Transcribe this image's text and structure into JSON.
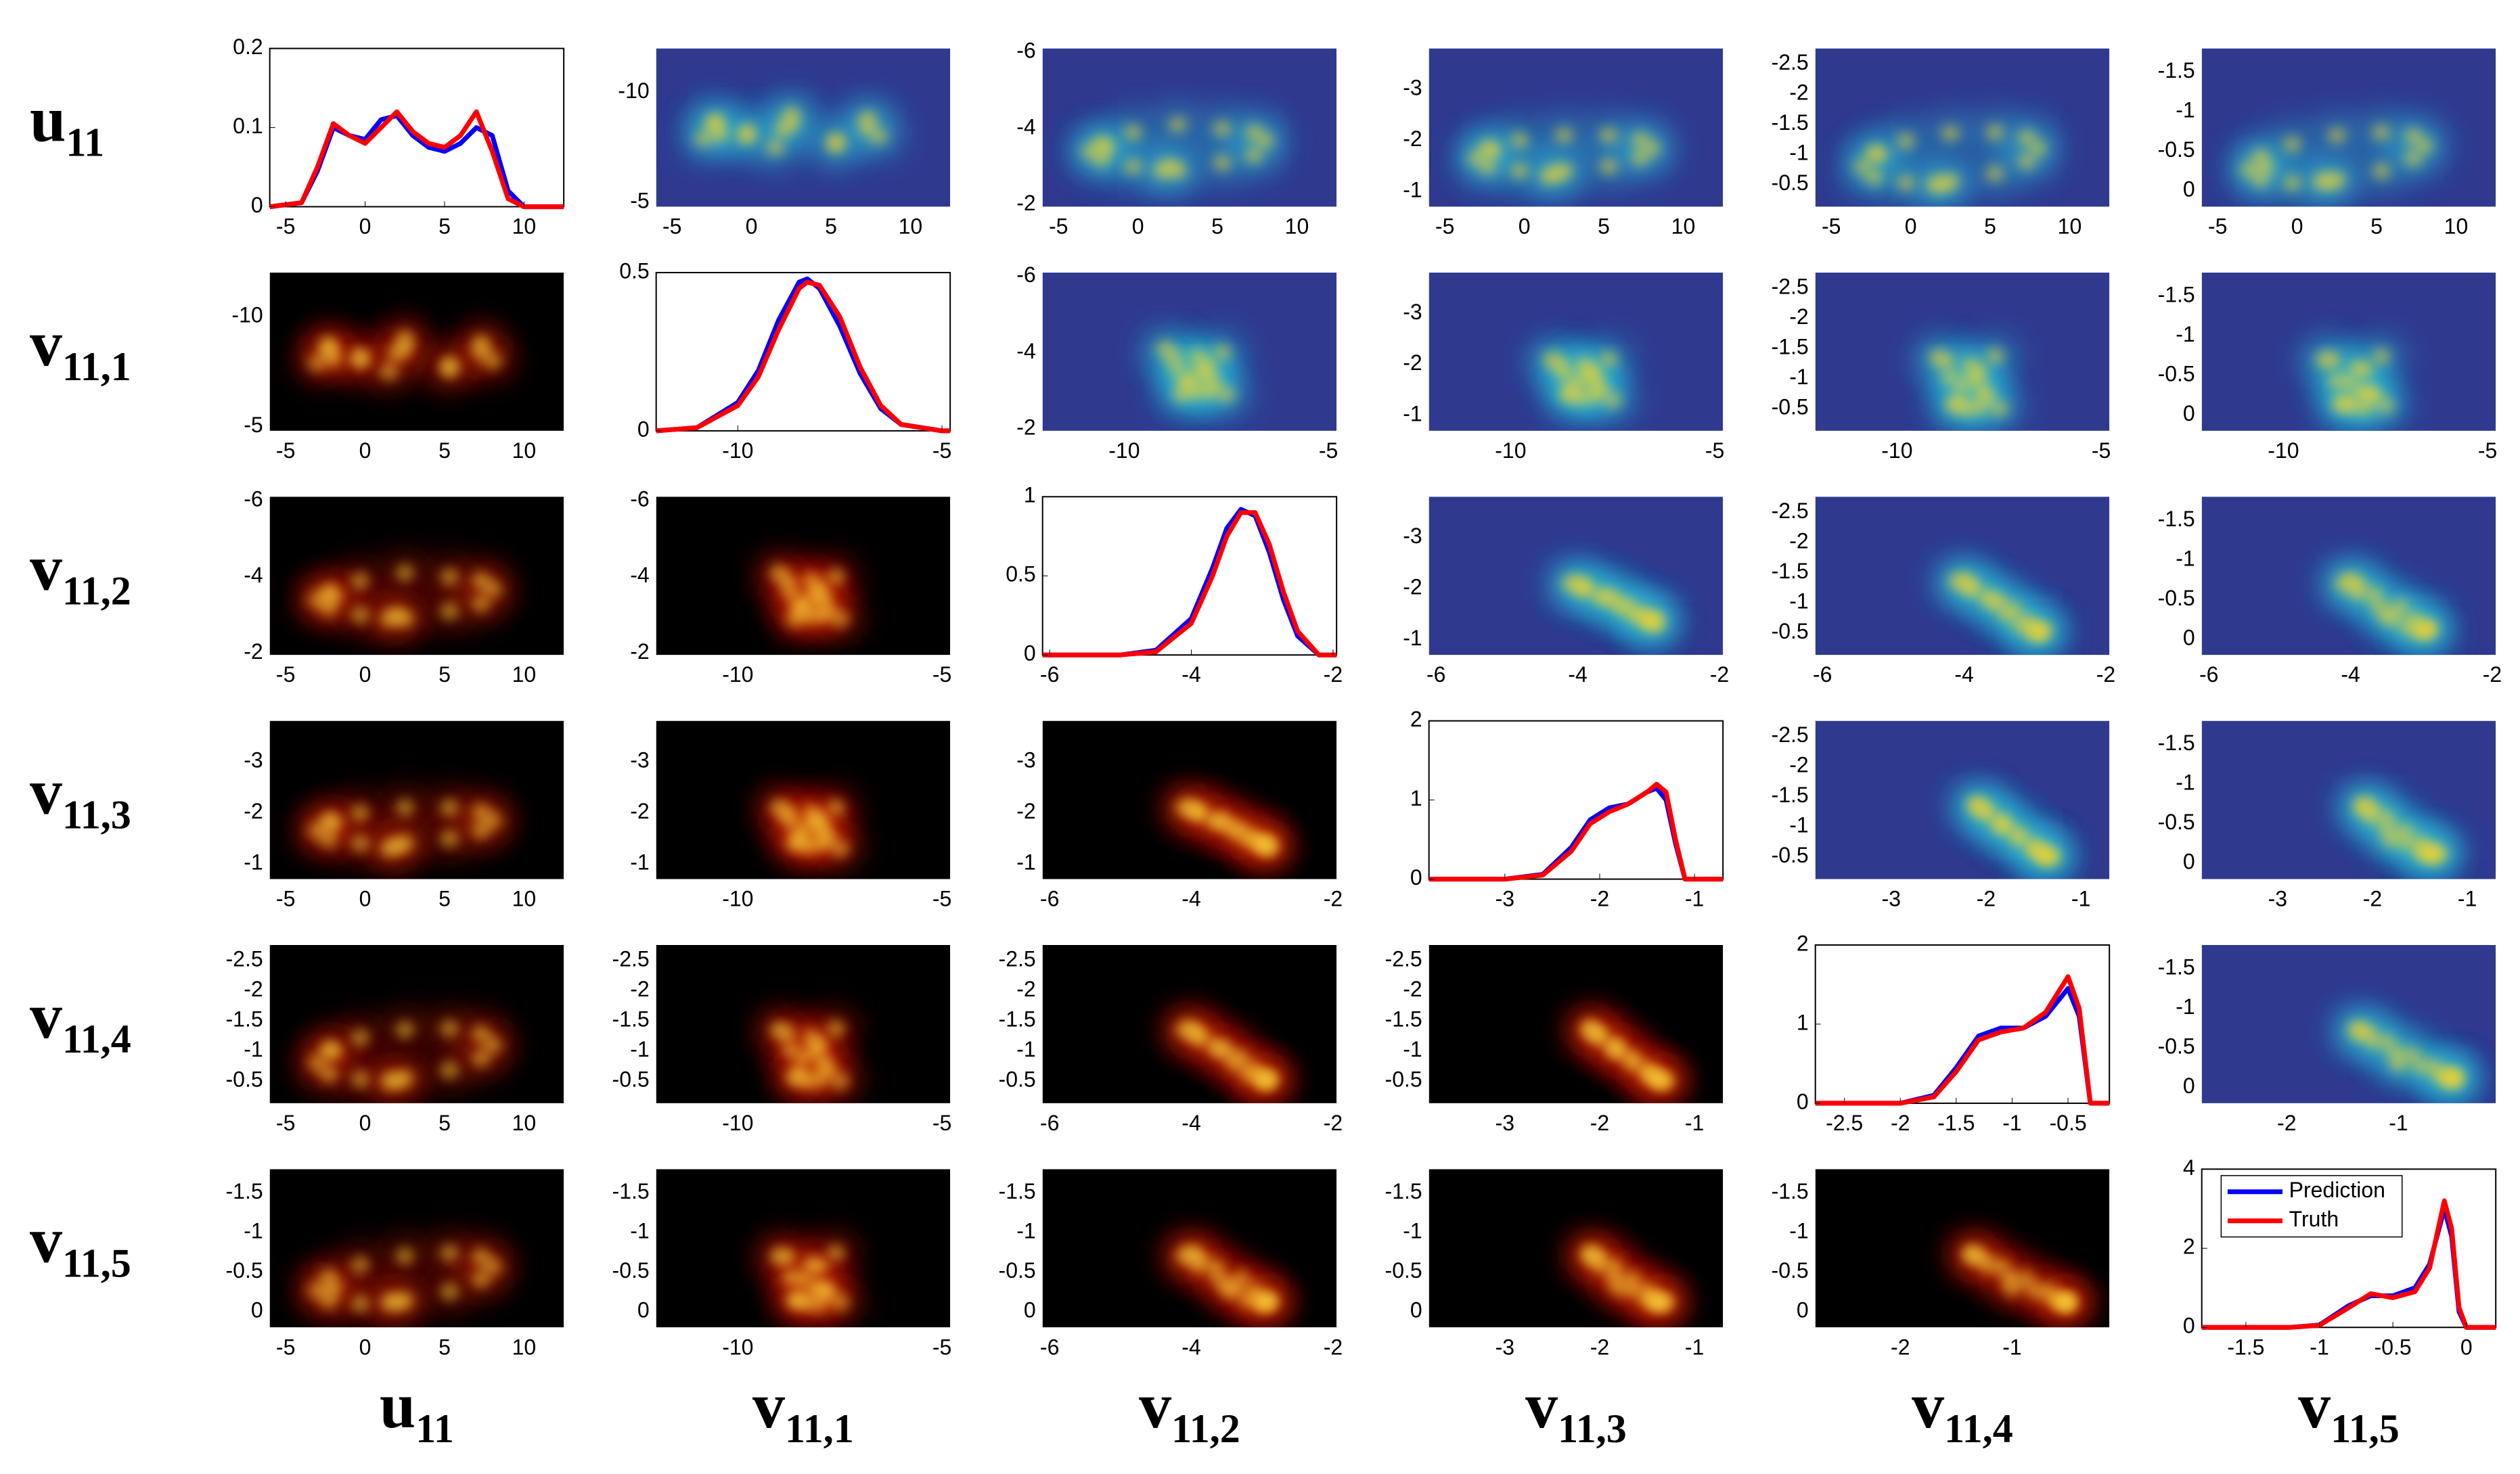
{
  "chart_data": {
    "type": "pair-density",
    "series": [
      {
        "name": "Prediction",
        "color": "#0000ff"
      },
      {
        "name": "Truth",
        "color": "#ff0000"
      }
    ],
    "legend": "upper left",
    "upper_colors": [
      "#2f3a8f",
      "#2cb6d6",
      "#f6d52a"
    ],
    "lower_colors": [
      "#000000",
      "#b81c00",
      "#ffd83a"
    ],
    "variables": [
      {
        "base": "u",
        "sub": "11",
        "lim": [
          -6,
          12.5
        ],
        "ticks": [
          -5,
          0,
          5,
          10
        ],
        "density": {
          "x": [
            -6,
            -4,
            -3,
            -2,
            -1,
            0,
            1,
            2,
            3,
            4,
            5,
            6,
            7,
            8,
            9,
            10,
            12.5
          ],
          "ylim": [
            0,
            0.2
          ],
          "yticks": [
            0,
            0.1,
            0.2
          ],
          "values": [
            [
              0,
              0.005,
              0.045,
              0.1,
              0.09,
              0.085,
              0.11,
              0.115,
              0.09,
              0.075,
              0.07,
              0.08,
              0.1,
              0.09,
              0.02,
              0,
              0
            ],
            [
              0,
              0.005,
              0.05,
              0.105,
              0.09,
              0.08,
              0.1,
              0.12,
              0.095,
              0.08,
              0.075,
              0.09,
              0.12,
              0.07,
              0.01,
              0,
              0
            ]
          ]
        }
      },
      {
        "base": "v",
        "sub": "11,1",
        "lim": [
          -12,
          -4.8
        ],
        "ticks": [
          -10,
          -5
        ],
        "density": {
          "x": [
            -12,
            -11,
            -10,
            -9.5,
            -9,
            -8.5,
            -8.3,
            -8,
            -7.5,
            -7,
            -6.5,
            -6,
            -5,
            -4.8
          ],
          "ylim": [
            0,
            0.5
          ],
          "yticks": [
            0,
            0.5
          ],
          "values": [
            [
              0,
              0.01,
              0.09,
              0.19,
              0.35,
              0.47,
              0.48,
              0.45,
              0.33,
              0.18,
              0.07,
              0.02,
              0,
              0
            ],
            [
              0,
              0.01,
              0.08,
              0.17,
              0.32,
              0.45,
              0.47,
              0.46,
              0.36,
              0.2,
              0.08,
              0.02,
              0,
              0
            ]
          ]
        }
      },
      {
        "base": "v",
        "sub": "11,2",
        "lim": [
          -6.1,
          -1.95
        ],
        "ticks": [
          -6,
          -4,
          -2
        ],
        "density": {
          "x": [
            -6.1,
            -5,
            -4.5,
            -4,
            -3.7,
            -3.5,
            -3.3,
            -3.1,
            -2.9,
            -2.7,
            -2.5,
            -2.2,
            -1.95
          ],
          "ylim": [
            0,
            1
          ],
          "yticks": [
            0,
            0.5,
            1
          ],
          "values": [
            [
              0,
              0,
              0.03,
              0.23,
              0.55,
              0.8,
              0.92,
              0.88,
              0.65,
              0.35,
              0.12,
              0,
              0
            ],
            [
              0,
              0,
              0.02,
              0.2,
              0.5,
              0.75,
              0.9,
              0.9,
              0.7,
              0.4,
              0.15,
              0,
              0
            ]
          ]
        }
      },
      {
        "base": "v",
        "sub": "11,3",
        "lim": [
          -3.8,
          -0.7
        ],
        "ticks": [
          -3,
          -2,
          -1
        ],
        "density": {
          "x": [
            -3.8,
            -3,
            -2.6,
            -2.3,
            -2.1,
            -1.9,
            -1.7,
            -1.5,
            -1.4,
            -1.3,
            -1.2,
            -1.1,
            -0.7
          ],
          "ylim": [
            0,
            2
          ],
          "yticks": [
            0,
            1,
            2
          ],
          "values": [
            [
              0,
              0,
              0.06,
              0.4,
              0.75,
              0.9,
              0.95,
              1.1,
              1.15,
              1.0,
              0.45,
              0,
              0
            ],
            [
              0,
              0,
              0.05,
              0.35,
              0.7,
              0.85,
              0.95,
              1.1,
              1.2,
              1.1,
              0.5,
              0,
              0
            ]
          ]
        }
      },
      {
        "base": "v",
        "sub": "11,4",
        "lim": [
          -2.76,
          -0.13
        ],
        "ticks": [
          -2.5,
          -2,
          -1.5,
          -1,
          -0.5
        ],
        "xticks_offdiag": [
          -2,
          -1
        ],
        "density": {
          "x": [
            -2.76,
            -2,
            -1.7,
            -1.5,
            -1.3,
            -1.1,
            -0.9,
            -0.7,
            -0.5,
            -0.4,
            -0.3,
            -0.13
          ],
          "ylim": [
            0,
            2
          ],
          "yticks": [
            0,
            1,
            2
          ],
          "values": [
            [
              0,
              0,
              0.1,
              0.45,
              0.85,
              0.95,
              0.95,
              1.1,
              1.45,
              1.1,
              0,
              0
            ],
            [
              0,
              0,
              0.08,
              0.4,
              0.8,
              0.9,
              0.95,
              1.15,
              1.6,
              1.2,
              0,
              0
            ]
          ]
        }
      },
      {
        "base": "v",
        "sub": "11,5",
        "lim": [
          -1.8,
          0.2
        ],
        "ticks": [
          -1.5,
          -1,
          -0.5,
          0
        ],
        "density": {
          "x": [
            -1.8,
            -1.2,
            -1.0,
            -0.8,
            -0.65,
            -0.5,
            -0.35,
            -0.25,
            -0.15,
            -0.1,
            -0.05,
            0,
            0.2
          ],
          "ylim": [
            0,
            4
          ],
          "yticks": [
            0,
            2,
            4
          ],
          "values": [
            [
              0,
              0,
              0.06,
              0.55,
              0.8,
              0.8,
              1.0,
              1.6,
              3.0,
              2.3,
              0.4,
              0,
              0
            ],
            [
              0,
              0,
              0.05,
              0.5,
              0.85,
              0.75,
              0.9,
              1.5,
              3.2,
              2.5,
              0.5,
              0,
              0
            ]
          ]
        }
      }
    ],
    "samples": [
      [
        8.0,
        -8.0,
        -3.68,
        -1.85,
        -1.1,
        -0.57
      ],
      [
        7.3,
        -8.8,
        -3.9,
        -2.01,
        -1.28,
        -0.69
      ],
      [
        5.3,
        -7.6,
        -4.0,
        -2.1,
        -1.37,
        -0.74
      ],
      [
        2.5,
        -9.0,
        -4.1,
        -2.1,
        -1.35,
        -0.7
      ],
      [
        -0.3,
        -8.2,
        -3.9,
        -2.0,
        -1.22,
        -0.59
      ],
      [
        -2.3,
        -8.7,
        -3.6,
        -1.84,
        -1.02,
        -0.43
      ],
      [
        -3.0,
        -7.9,
        -3.4,
        -1.65,
        -0.8,
        -0.27
      ],
      [
        -2.3,
        -8.5,
        -3.2,
        -1.49,
        -0.62,
        -0.15
      ],
      [
        -0.3,
        -8.0,
        -3.0,
        -1.4,
        -0.53,
        -0.1
      ],
      [
        2.5,
        -8.6,
        -2.9,
        -1.4,
        -0.55,
        -0.14
      ],
      [
        5.3,
        -7.8,
        -3.1,
        -1.49,
        -0.68,
        -0.25
      ],
      [
        7.3,
        -8.4,
        -3.3,
        -1.66,
        -0.88,
        -0.41
      ],
      [
        2.0,
        -8.3,
        -3.0,
        -1.35,
        -0.5,
        -0.12
      ],
      [
        -2.0,
        -8.1,
        -3.5,
        -1.8,
        -1.0,
        -0.3
      ],
      [
        1.5,
        -7.5,
        -2.9,
        -1.3,
        -0.5,
        -0.12
      ]
    ]
  }
}
